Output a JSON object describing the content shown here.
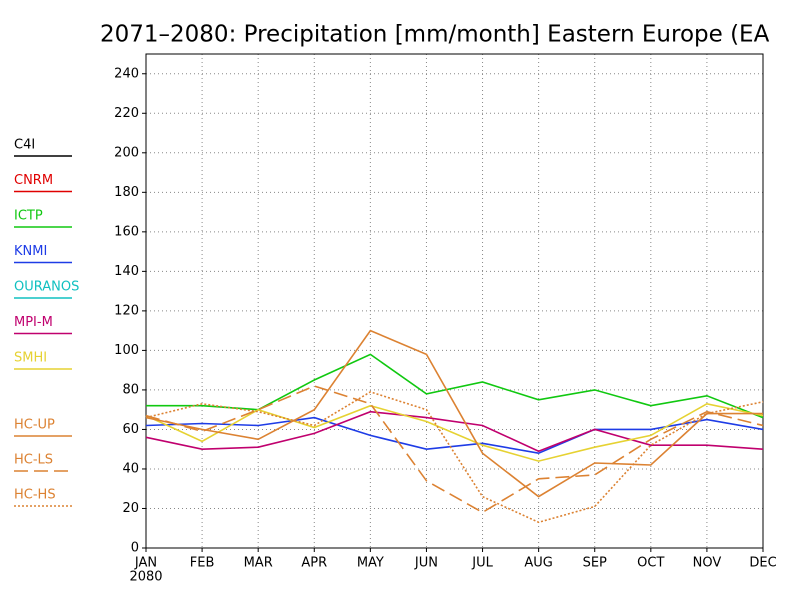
{
  "chart_data": {
    "type": "line",
    "title": "2071–2080: Precipitation [mm/month] Eastern Europe (EA",
    "categories": [
      "JAN",
      "FEB",
      "MAR",
      "APR",
      "MAY",
      "JUN",
      "JUL",
      "AUG",
      "SEP",
      "OCT",
      "NOV",
      "DEC"
    ],
    "x_sublabel": "2080",
    "ylim": [
      0,
      250
    ],
    "yticks": [
      0,
      20,
      40,
      60,
      80,
      100,
      120,
      140,
      160,
      180,
      200,
      220,
      240
    ],
    "grid": true,
    "legend": "left",
    "series": [
      {
        "name": "C4I",
        "color": "#000000",
        "dash": "solid",
        "values": [
          null,
          null,
          null,
          null,
          null,
          null,
          null,
          null,
          null,
          null,
          null,
          null
        ]
      },
      {
        "name": "CNRM",
        "color": "#e00000",
        "dash": "solid",
        "values": [
          null,
          null,
          null,
          null,
          null,
          null,
          null,
          null,
          null,
          null,
          null,
          null
        ]
      },
      {
        "name": "ICTP",
        "color": "#10c810",
        "dash": "solid",
        "values": [
          72,
          72,
          70,
          85,
          98,
          78,
          84,
          75,
          80,
          72,
          77,
          66
        ]
      },
      {
        "name": "KNMI",
        "color": "#1e3ce6",
        "dash": "solid",
        "values": [
          62,
          63,
          62,
          66,
          57,
          50,
          53,
          48,
          60,
          60,
          65,
          60
        ]
      },
      {
        "name": "OURANOS",
        "color": "#10c0c0",
        "dash": "solid",
        "values": [
          null,
          null,
          null,
          null,
          null,
          null,
          null,
          null,
          null,
          null,
          null,
          null
        ]
      },
      {
        "name": "MPI-M",
        "color": "#c0006e",
        "dash": "solid",
        "values": [
          56,
          50,
          51,
          58,
          69,
          66,
          62,
          49,
          60,
          52,
          52,
          50
        ]
      },
      {
        "name": "SMHI",
        "color": "#e6d232",
        "dash": "solid",
        "values": [
          67,
          54,
          70,
          61,
          72,
          64,
          52,
          44,
          51,
          57,
          73,
          67
        ]
      },
      {
        "name": "HC-UP",
        "color": "#dc8232",
        "dash": "solid",
        "values": [
          66,
          60,
          55,
          70,
          110,
          98,
          48,
          26,
          43,
          42,
          68,
          68
        ]
      },
      {
        "name": "HC-LS",
        "color": "#dc8232",
        "dash": "dashed",
        "values": [
          67,
          59,
          70,
          82,
          73,
          34,
          18,
          35,
          37,
          55,
          69,
          62
        ]
      },
      {
        "name": "HC-HS",
        "color": "#dc8232",
        "dash": "dotted",
        "values": [
          66,
          73,
          69,
          62,
          79,
          70,
          26,
          13,
          21,
          52,
          68,
          74
        ]
      }
    ]
  }
}
